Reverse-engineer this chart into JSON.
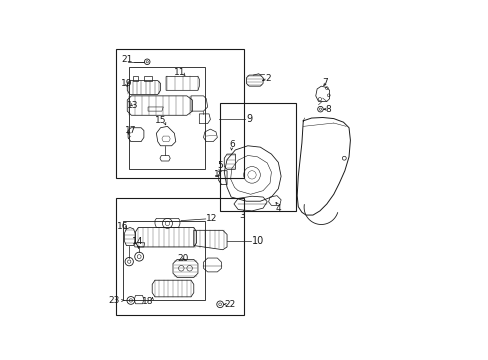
{
  "bg_color": "#ffffff",
  "line_color": "#1a1a1a",
  "figsize": [
    4.89,
    3.6
  ],
  "dpi": 100,
  "boxes": {
    "outer1": [
      0.015,
      0.515,
      0.46,
      0.465
    ],
    "inner1": [
      0.06,
      0.545,
      0.275,
      0.37
    ],
    "outer2": [
      0.39,
      0.395,
      0.275,
      0.39
    ],
    "outer3": [
      0.015,
      0.02,
      0.46,
      0.42
    ],
    "inner3": [
      0.04,
      0.075,
      0.295,
      0.285
    ]
  }
}
